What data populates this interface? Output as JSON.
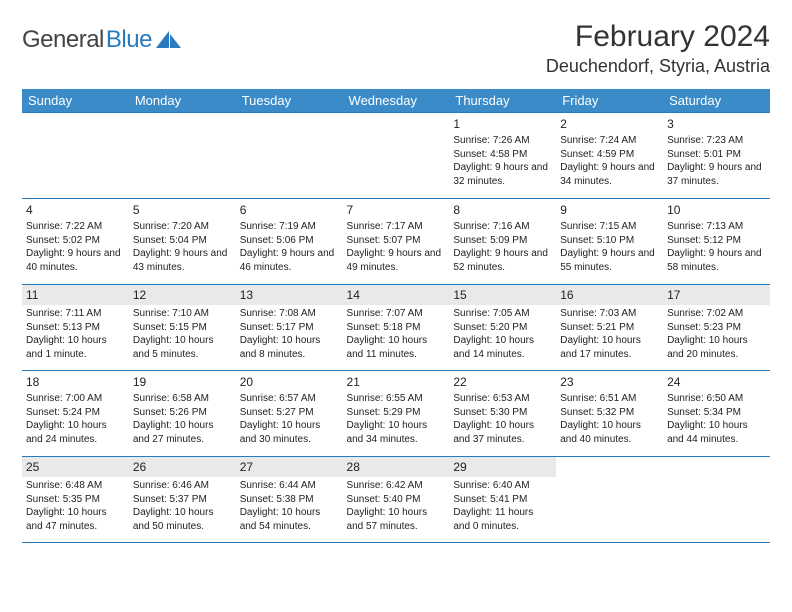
{
  "brand": {
    "name1": "General",
    "name2": "Blue"
  },
  "title": "February 2024",
  "location": "Deuchendorf, Styria, Austria",
  "colors": {
    "accent": "#3b8bc9",
    "border": "#2a7ac0",
    "shade": "#e9e9e9",
    "text": "#333333",
    "bg": "#ffffff"
  },
  "weekdays": [
    "Sunday",
    "Monday",
    "Tuesday",
    "Wednesday",
    "Thursday",
    "Friday",
    "Saturday"
  ],
  "weeks": [
    [
      null,
      null,
      null,
      null,
      {
        "n": "1",
        "sr": "7:26 AM",
        "ss": "4:58 PM",
        "dl": "9 hours and 32 minutes."
      },
      {
        "n": "2",
        "sr": "7:24 AM",
        "ss": "4:59 PM",
        "dl": "9 hours and 34 minutes."
      },
      {
        "n": "3",
        "sr": "7:23 AM",
        "ss": "5:01 PM",
        "dl": "9 hours and 37 minutes."
      }
    ],
    [
      {
        "n": "4",
        "sr": "7:22 AM",
        "ss": "5:02 PM",
        "dl": "9 hours and 40 minutes."
      },
      {
        "n": "5",
        "sr": "7:20 AM",
        "ss": "5:04 PM",
        "dl": "9 hours and 43 minutes."
      },
      {
        "n": "6",
        "sr": "7:19 AM",
        "ss": "5:06 PM",
        "dl": "9 hours and 46 minutes."
      },
      {
        "n": "7",
        "sr": "7:17 AM",
        "ss": "5:07 PM",
        "dl": "9 hours and 49 minutes."
      },
      {
        "n": "8",
        "sr": "7:16 AM",
        "ss": "5:09 PM",
        "dl": "9 hours and 52 minutes."
      },
      {
        "n": "9",
        "sr": "7:15 AM",
        "ss": "5:10 PM",
        "dl": "9 hours and 55 minutes."
      },
      {
        "n": "10",
        "sr": "7:13 AM",
        "ss": "5:12 PM",
        "dl": "9 hours and 58 minutes."
      }
    ],
    [
      {
        "n": "11",
        "sr": "7:11 AM",
        "ss": "5:13 PM",
        "dl": "10 hours and 1 minute."
      },
      {
        "n": "12",
        "sr": "7:10 AM",
        "ss": "5:15 PM",
        "dl": "10 hours and 5 minutes."
      },
      {
        "n": "13",
        "sr": "7:08 AM",
        "ss": "5:17 PM",
        "dl": "10 hours and 8 minutes."
      },
      {
        "n": "14",
        "sr": "7:07 AM",
        "ss": "5:18 PM",
        "dl": "10 hours and 11 minutes."
      },
      {
        "n": "15",
        "sr": "7:05 AM",
        "ss": "5:20 PM",
        "dl": "10 hours and 14 minutes."
      },
      {
        "n": "16",
        "sr": "7:03 AM",
        "ss": "5:21 PM",
        "dl": "10 hours and 17 minutes."
      },
      {
        "n": "17",
        "sr": "7:02 AM",
        "ss": "5:23 PM",
        "dl": "10 hours and 20 minutes."
      }
    ],
    [
      {
        "n": "18",
        "sr": "7:00 AM",
        "ss": "5:24 PM",
        "dl": "10 hours and 24 minutes."
      },
      {
        "n": "19",
        "sr": "6:58 AM",
        "ss": "5:26 PM",
        "dl": "10 hours and 27 minutes."
      },
      {
        "n": "20",
        "sr": "6:57 AM",
        "ss": "5:27 PM",
        "dl": "10 hours and 30 minutes."
      },
      {
        "n": "21",
        "sr": "6:55 AM",
        "ss": "5:29 PM",
        "dl": "10 hours and 34 minutes."
      },
      {
        "n": "22",
        "sr": "6:53 AM",
        "ss": "5:30 PM",
        "dl": "10 hours and 37 minutes."
      },
      {
        "n": "23",
        "sr": "6:51 AM",
        "ss": "5:32 PM",
        "dl": "10 hours and 40 minutes."
      },
      {
        "n": "24",
        "sr": "6:50 AM",
        "ss": "5:34 PM",
        "dl": "10 hours and 44 minutes."
      }
    ],
    [
      {
        "n": "25",
        "sr": "6:48 AM",
        "ss": "5:35 PM",
        "dl": "10 hours and 47 minutes."
      },
      {
        "n": "26",
        "sr": "6:46 AM",
        "ss": "5:37 PM",
        "dl": "10 hours and 50 minutes."
      },
      {
        "n": "27",
        "sr": "6:44 AM",
        "ss": "5:38 PM",
        "dl": "10 hours and 54 minutes."
      },
      {
        "n": "28",
        "sr": "6:42 AM",
        "ss": "5:40 PM",
        "dl": "10 hours and 57 minutes."
      },
      {
        "n": "29",
        "sr": "6:40 AM",
        "ss": "5:41 PM",
        "dl": "11 hours and 0 minutes."
      },
      null,
      null
    ]
  ],
  "shadedRows": [
    false,
    false,
    true,
    false,
    true
  ],
  "labels": {
    "sunrise": "Sunrise:",
    "sunset": "Sunset:",
    "daylight": "Daylight:"
  }
}
